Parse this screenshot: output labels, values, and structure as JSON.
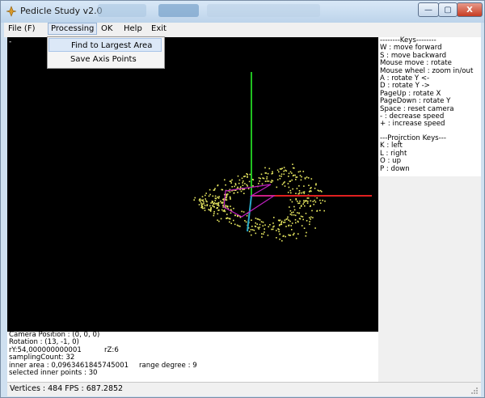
{
  "window": {
    "title": "Pedicle Study v2.0",
    "controls": {
      "minimize": "—",
      "maximize": "▢",
      "close": "X"
    }
  },
  "menubar": {
    "items": [
      "File (F)",
      "Processing",
      "OK",
      "Help",
      "Exit"
    ]
  },
  "processing_menu": {
    "items": [
      "Find to Largest Area",
      "Save Axis Points"
    ]
  },
  "viewport": {
    "marker": "-",
    "axis_colors": {
      "x": "#e02020",
      "y": "#20c020",
      "z": "#28a8c8",
      "points": "#e8e860",
      "outline": "#c020c0"
    }
  },
  "keys_panel": {
    "lines": [
      "--------Keys--------",
      "W : move forward",
      "S : move backward",
      "Mouse move : rotate",
      "Mouse wheel : zoom in/out",
      "A : rotate Y <-",
      "D : rotate Y ->",
      "PageUp : rotate X",
      "PageDown : rotate Y",
      "Space : reset camera",
      "- : decrease speed",
      "+ : increase speed"
    ],
    "projection_lines": [
      "---Projrction Keys---",
      "K : left",
      "L : right",
      "O : up",
      "P : down"
    ]
  },
  "info_panel": {
    "camera_position": "Camera Position : (0, 0, 0)",
    "rotation": "Rotation : (13, -1, 0)",
    "ry": "rY:54,000000000001",
    "rz": "rZ:6",
    "sampling_count": "samplingCount: 32",
    "inner_area": "inner area : 0,0963461845745001",
    "range_degree": "range degree : 9",
    "selected_inner_points": "selected inner points : 30"
  },
  "statusbar": {
    "text": "Vertices : 484  FPS : 687.2852"
  }
}
